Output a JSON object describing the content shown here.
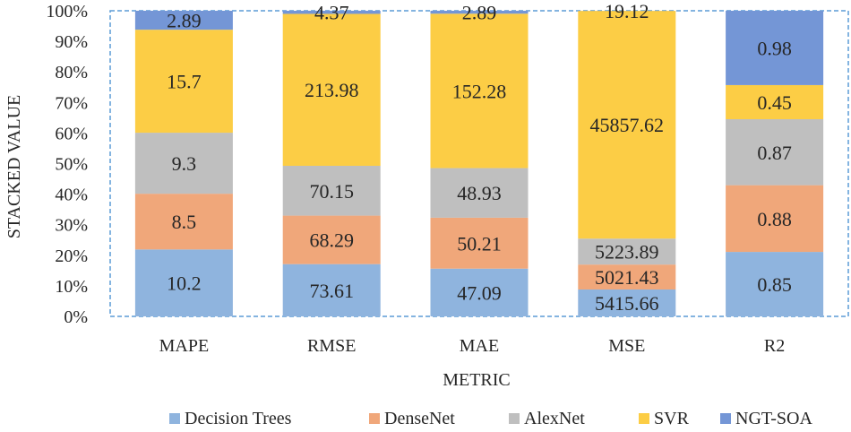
{
  "chart_data": {
    "type": "bar",
    "stacking": "percent",
    "title": "",
    "xlabel": "METRIC",
    "ylabel": "STACKED VALUE",
    "ylim": [
      0,
      100
    ],
    "yticks": [
      "0%",
      "10%",
      "20%",
      "30%",
      "40%",
      "50%",
      "60%",
      "70%",
      "80%",
      "90%",
      "100%"
    ],
    "categories": [
      "MAPE",
      "RMSE",
      "MAE",
      "MSE",
      "R2"
    ],
    "legend_position": "bottom",
    "series": [
      {
        "name": "Decision Trees",
        "color": "#8fb4de",
        "values": [
          10.2,
          73.61,
          47.09,
          5415.66,
          0.85
        ],
        "labels": [
          "10.2",
          "73.61",
          "47.09",
          "5415.66",
          "0.85"
        ]
      },
      {
        "name": "DenseNet",
        "color": "#f0a77a",
        "values": [
          8.5,
          68.29,
          50.21,
          5021.43,
          0.88
        ],
        "labels": [
          "8.5",
          "68.29",
          "50.21",
          "5021.43",
          "0.88"
        ]
      },
      {
        "name": "AlexNet",
        "color": "#bfbfbf",
        "values": [
          9.3,
          70.15,
          48.93,
          5223.89,
          0.87
        ],
        "labels": [
          "9.3",
          "70.15",
          "48.93",
          "5223.89",
          "0.87"
        ]
      },
      {
        "name": "SVR",
        "color": "#fccd45",
        "values": [
          15.7,
          213.98,
          152.28,
          45857.62,
          0.45
        ],
        "labels": [
          "15.7",
          "213.98",
          "152.28",
          "45857.62",
          "0.45"
        ]
      },
      {
        "name": "NGT-SOA",
        "color": "#7496d6",
        "values": [
          2.89,
          4.37,
          2.89,
          19.12,
          0.98
        ],
        "labels": [
          "2.89",
          "4.37",
          "2.89",
          "19.12",
          "0.98"
        ]
      }
    ]
  }
}
